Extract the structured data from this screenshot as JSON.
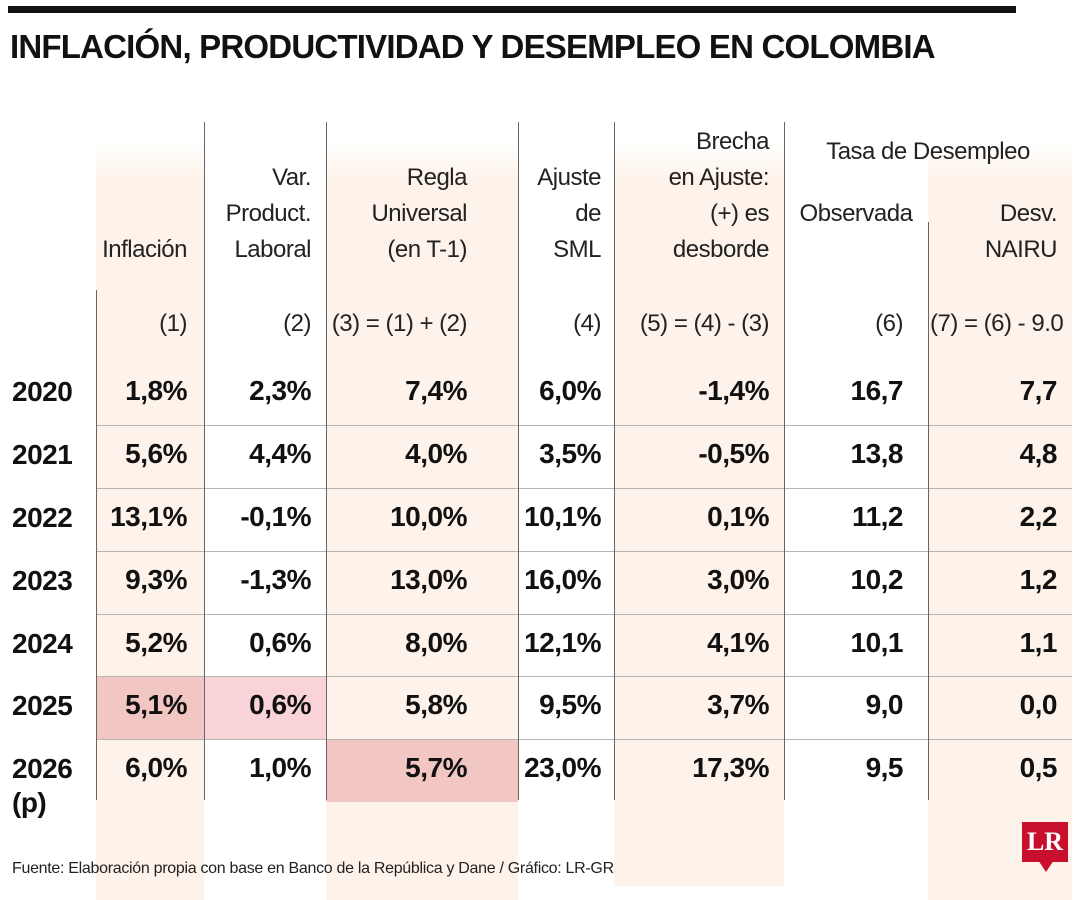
{
  "title": "INFLACIÓN, PRODUCTIVIDAD Y DESEMPLEO EN COLOMBIA",
  "source": "Fuente: Elaboración propia con base en Banco de la República y Dane / Gráfico: LR-GR",
  "logo_text": "LR",
  "colors": {
    "shade": "#fdf3ea",
    "highlight_red": "#f2c6c2",
    "highlight_pink": "#f9d3d8",
    "logo": "#c8102e"
  },
  "group_header": "Tasa  de Desempleo",
  "chart_data": {
    "type": "table",
    "title": "INFLACIÓN, PRODUCTIVIDAD Y DESEMPLEO EN COLOMBIA",
    "columns": [
      {
        "header": "Inflación",
        "formula": "(1)"
      },
      {
        "header": "Var.\nProduct.\nLaboral",
        "formula": "(2)"
      },
      {
        "header": "Regla\nUniversal\n(en T-1)",
        "formula": "(3) = (1) + (2)"
      },
      {
        "header": "Ajuste\nde\nSML",
        "formula": "(4)"
      },
      {
        "header": "Brecha\nen Ajuste:\n(+) es\ndesborde",
        "formula": "(5) = (4) - (3)"
      },
      {
        "header": "Observada",
        "formula": "(6)"
      },
      {
        "header": "Desv.\nNAIRU",
        "formula": "(7) = (6) - 9.0"
      }
    ],
    "rows": [
      {
        "year": "2020",
        "values": [
          "1,8%",
          "2,3%",
          "7,4%",
          "6,0%",
          "-1,4%",
          "16,7",
          "7,7"
        ]
      },
      {
        "year": "2021",
        "values": [
          "5,6%",
          "4,4%",
          "4,0%",
          "3,5%",
          "-0,5%",
          "13,8",
          "4,8"
        ]
      },
      {
        "year": "2022",
        "values": [
          "13,1%",
          "-0,1%",
          "10,0%",
          "10,1%",
          "0,1%",
          "11,2",
          "2,2"
        ]
      },
      {
        "year": "2023",
        "values": [
          "9,3%",
          "-1,3%",
          "13,0%",
          "16,0%",
          "3,0%",
          "10,2",
          "1,2"
        ]
      },
      {
        "year": "2024",
        "values": [
          "5,2%",
          "0,6%",
          "8,0%",
          "12,1%",
          "4,1%",
          "10,1",
          "1,1"
        ]
      },
      {
        "year": "2025",
        "values": [
          "5,1%",
          "0,6%",
          "5,8%",
          "9,5%",
          "3,7%",
          "9,0",
          "0,0"
        ]
      },
      {
        "year": "2026\n(p)",
        "values": [
          "6,0%",
          "1,0%",
          "5,7%",
          "23,0%",
          "17,3%",
          "9,5",
          "0,5"
        ]
      }
    ],
    "highlighted_cells": [
      {
        "row": 5,
        "col": 0,
        "color": "red"
      },
      {
        "row": 5,
        "col": 1,
        "color": "pink"
      },
      {
        "row": 6,
        "col": 2,
        "color": "red"
      }
    ]
  }
}
